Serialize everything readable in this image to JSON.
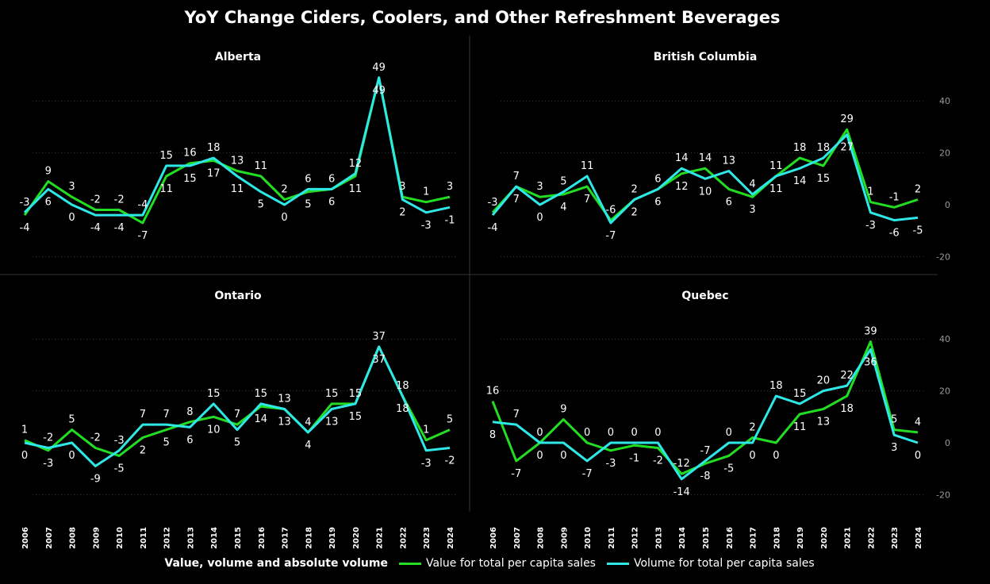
{
  "title": "YoY Change Ciders, Coolers, and Other Refreshment Beverages",
  "legend": {
    "title": "Value, volume and absolute volume",
    "items": [
      {
        "label": "Value for total per capita sales",
        "color": "#22dd22"
      },
      {
        "label": "Volume for total per capita sales",
        "color": "#2ee8e8"
      }
    ]
  },
  "chart_data": [
    {
      "type": "line",
      "title": "Alberta",
      "x": [
        "2006",
        "2007",
        "2008",
        "2009",
        "2010",
        "2011",
        "2012",
        "2013",
        "2014",
        "2015",
        "2016",
        "2017",
        "2018",
        "2019",
        "2020",
        "2021",
        "2022",
        "2023",
        "2024"
      ],
      "series": [
        {
          "name": "Value for total per capita sales",
          "color": "#22dd22",
          "values": [
            -4,
            9,
            3,
            -2,
            -2,
            -7,
            11,
            16,
            17,
            13,
            11,
            2,
            5,
            6,
            11,
            49,
            3,
            1,
            3
          ]
        },
        {
          "name": "Volume for total per capita sales",
          "color": "#2ee8e8",
          "values": [
            -3,
            6,
            0,
            -4,
            -4,
            -4,
            15,
            15,
            18,
            11,
            5,
            0,
            6,
            6,
            12,
            49,
            2,
            -3,
            -1
          ]
        }
      ]
    },
    {
      "type": "line",
      "title": "British Columbia",
      "x": [
        "2006",
        "2007",
        "2008",
        "2009",
        "2010",
        "2011",
        "2012",
        "2013",
        "2014",
        "2015",
        "2016",
        "2017",
        "2018",
        "2019",
        "2020",
        "2021",
        "2022",
        "2023",
        "2024"
      ],
      "series": [
        {
          "name": "Value for total per capita sales",
          "color": "#22dd22",
          "values": [
            -3,
            7,
            3,
            4,
            7,
            -6,
            2,
            6,
            12,
            14,
            6,
            3,
            11,
            18,
            15,
            29,
            1,
            -1,
            2
          ]
        },
        {
          "name": "Volume for total per capita sales",
          "color": "#2ee8e8",
          "values": [
            -4,
            7,
            0,
            5,
            11,
            -7,
            2,
            6,
            14,
            10,
            13,
            4,
            11,
            14,
            18,
            27,
            -3,
            -6,
            -5
          ]
        }
      ],
      "ylim": [
        -20,
        40
      ],
      "yticks": [
        -20,
        0,
        20,
        40
      ]
    },
    {
      "type": "line",
      "title": "Ontario",
      "x": [
        "2006",
        "2007",
        "2008",
        "2009",
        "2010",
        "2011",
        "2012",
        "2013",
        "2014",
        "2015",
        "2016",
        "2017",
        "2018",
        "2019",
        "2020",
        "2021",
        "2022",
        "2023",
        "2024"
      ],
      "series": [
        {
          "name": "Value for total per capita sales",
          "color": "#22dd22",
          "values": [
            1,
            -3,
            5,
            -2,
            -5,
            2,
            5,
            8,
            10,
            7,
            14,
            13,
            4,
            15,
            15,
            37,
            18,
            1,
            5
          ]
        },
        {
          "name": "Volume for total per capita sales",
          "color": "#2ee8e8",
          "values": [
            0,
            -2,
            0,
            -9,
            -3,
            7,
            7,
            6,
            15,
            5,
            15,
            13,
            4,
            13,
            15,
            37,
            18,
            -3,
            -2
          ]
        }
      ]
    },
    {
      "type": "line",
      "title": "Quebec",
      "x": [
        "2006",
        "2007",
        "2008",
        "2009",
        "2010",
        "2011",
        "2012",
        "2013",
        "2014",
        "2015",
        "2016",
        "2017",
        "2018",
        "2019",
        "2020",
        "2021",
        "2022",
        "2023",
        "2024"
      ],
      "series": [
        {
          "name": "Value for total per capita sales",
          "color": "#22dd22",
          "values": [
            16,
            -7,
            0,
            9,
            0,
            -3,
            -1,
            -2,
            -12,
            -8,
            -5,
            2,
            0,
            11,
            13,
            18,
            39,
            5,
            4
          ]
        },
        {
          "name": "Volume for total per capita sales",
          "color": "#2ee8e8",
          "values": [
            8,
            7,
            0,
            0,
            -7,
            0,
            0,
            0,
            -14,
            -7,
            0,
            0,
            18,
            15,
            20,
            22,
            36,
            3,
            0
          ]
        }
      ],
      "ylim": [
        -20,
        40
      ],
      "yticks": [
        -20,
        0,
        20,
        40
      ]
    }
  ]
}
